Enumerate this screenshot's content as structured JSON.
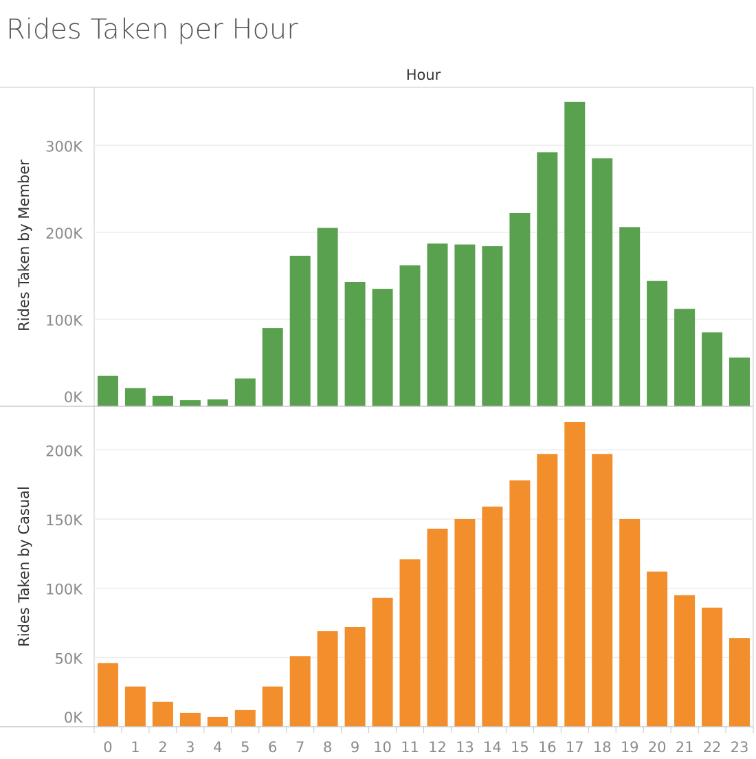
{
  "title": "Rides Taken per Hour",
  "colors": {
    "member": "#59a14f",
    "casual": "#f28e2b",
    "grid": "#ececec",
    "axis_line": "#c8c8c8",
    "title_text": "#555555",
    "tick_text": "#8a8a8a",
    "axis_title_text": "#333333"
  },
  "chart_data": {
    "type": "bar",
    "title": "Rides Taken per Hour",
    "xlabel": "Hour",
    "categories": [
      "0",
      "1",
      "2",
      "3",
      "4",
      "5",
      "6",
      "7",
      "8",
      "9",
      "10",
      "11",
      "12",
      "13",
      "14",
      "15",
      "16",
      "17",
      "18",
      "19",
      "20",
      "21",
      "22",
      "23"
    ],
    "grid": true,
    "panels": [
      {
        "ylabel": "Rides Taken by Member",
        "ylim": [
          0,
          350000
        ],
        "yticks": [
          0,
          100000,
          200000,
          300000
        ],
        "ytick_labels": [
          "0K",
          "100K",
          "200K",
          "300K"
        ],
        "series": [
          {
            "name": "Rides Taken by Member",
            "values": [
              35000,
              21000,
              12000,
              7000,
              8000,
              32000,
              90000,
              173000,
              205000,
              143000,
              135000,
              162000,
              187000,
              186000,
              184000,
              222000,
              292000,
              350000,
              285000,
              206000,
              144000,
              112000,
              85000,
              56000
            ]
          }
        ]
      },
      {
        "ylabel": "Rides Taken by Casual",
        "ylim": [
          0,
          220000
        ],
        "yticks": [
          0,
          50000,
          100000,
          150000,
          200000
        ],
        "ytick_labels": [
          "0K",
          "50K",
          "100K",
          "150K",
          "200K"
        ],
        "series": [
          {
            "name": "Rides Taken by Casual",
            "values": [
              46000,
              29000,
              18000,
              10000,
              7000,
              12000,
              29000,
              51000,
              69000,
              72000,
              93000,
              121000,
              143000,
              150000,
              159000,
              178000,
              197000,
              220000,
              197000,
              150000,
              112000,
              95000,
              86000,
              64000
            ]
          }
        ]
      }
    ]
  }
}
